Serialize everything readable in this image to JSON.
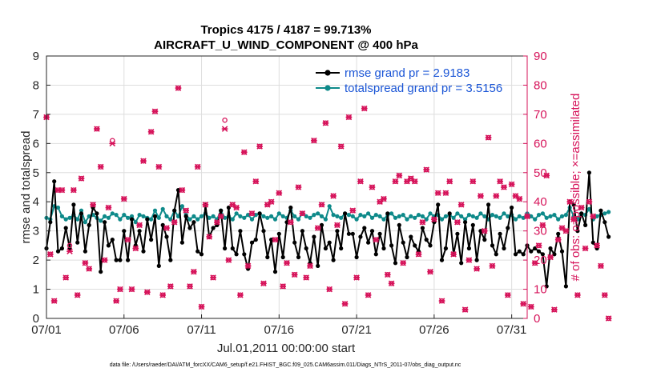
{
  "figure": {
    "title_line1": "Tropics 4175 / 4187 = 99.713%",
    "title_line2": "AIRCRAFT_U_WIND_COMPONENT @ 400 hPa",
    "footer": "data file: /Users/raeder/DAI/ATM_forcXX/CAM6_setup/f.e21.FHIST_BGC.f09_025.CAM6assim.011/Diags_NTrS_2011-07/obs_diag_output.nc"
  },
  "colors": {
    "rmse": "#000000",
    "spread": "#0e8a8a",
    "obs": "#d6135a",
    "legend_text": "#1a55d6"
  },
  "chart_data": {
    "type": "line",
    "xlabel": "Jul.01,2011 00:00:00 start",
    "ylabel": "rmse and totalspread",
    "ylabel_right": "# of obs: o=possible; ×=assimilated",
    "xlim": [
      1,
      32
    ],
    "ylim": [
      0,
      9
    ],
    "ylim_right": [
      0,
      90
    ],
    "x_ticks": [
      1,
      6,
      11,
      16,
      21,
      26,
      31
    ],
    "x_tick_labels": [
      "07/01",
      "07/06",
      "07/11",
      "07/16",
      "07/21",
      "07/26",
      "07/31"
    ],
    "y_ticks": [
      0,
      1,
      2,
      3,
      4,
      5,
      6,
      7,
      8,
      9
    ],
    "y_ticks_right": [
      0,
      10,
      20,
      30,
      40,
      50,
      60,
      70,
      80,
      90
    ],
    "grid": true,
    "legend_position": "top-right",
    "x_start": 1.0,
    "x_step": 0.25,
    "series": [
      {
        "name": "rmse grand pr = 2.9183",
        "axis": "left",
        "values": [
          2.4,
          3.3,
          4.7,
          2.3,
          2.4,
          3.1,
          2.4,
          3.9,
          2.6,
          3.6,
          2.3,
          3.2,
          3.8,
          3.6,
          1.6,
          3.3,
          2.5,
          2.7,
          2.0,
          2.0,
          3.0,
          2.0,
          3.4,
          2.5,
          3.0,
          2.3,
          3.4,
          2.7,
          3.5,
          1.8,
          3.2,
          2.8,
          2.0,
          3.7,
          4.4,
          2.6,
          3.5,
          3.1,
          3.3,
          2.3,
          2.2,
          3.9,
          2.8,
          3.1,
          3.2,
          3.7,
          2.4,
          3.8,
          2.4,
          2.2,
          3.0,
          2.2,
          1.7,
          2.6,
          2.7,
          3.6,
          3.0,
          2.1,
          2.7,
          1.6,
          2.9,
          2.1,
          3.3,
          3.8,
          2.6,
          2.1,
          3.0,
          2.4,
          1.9,
          2.8,
          1.8,
          3.2,
          2.4,
          2.6,
          2.0,
          3.0,
          2.4,
          3.6,
          2.9,
          2.9,
          2.1,
          2.8,
          3.1,
          2.6,
          3.0,
          2.2,
          2.9,
          2.4,
          3.6,
          2.5,
          1.9,
          3.2,
          2.6,
          2.1,
          2.8,
          2.5,
          2.3,
          3.1,
          2.7,
          2.5,
          3.3,
          3.9,
          2.0,
          2.4,
          3.6,
          2.2,
          2.9,
          1.9,
          3.3,
          2.4,
          3.2,
          2.0,
          3.0,
          2.7,
          3.9,
          2.5,
          2.2,
          2.9,
          2.4,
          3.1,
          3.8,
          2.2,
          2.3,
          2.2,
          2.5,
          2.3,
          2.4,
          2.3,
          2.2,
          1.1,
          2.4,
          2.2,
          2.9,
          2.3,
          1.1,
          4.0,
          3.9,
          3.0,
          3.6,
          3.2,
          5.0,
          2.6,
          2.4,
          3.7,
          3.3,
          2.8
        ]
      },
      {
        "name": "totalspread grand pr = 3.5156",
        "axis": "left",
        "values": [
          3.45,
          3.4,
          3.85,
          3.8,
          3.5,
          3.4,
          3.45,
          3.55,
          3.4,
          3.7,
          3.3,
          3.5,
          3.55,
          3.45,
          3.35,
          3.5,
          3.45,
          3.6,
          3.55,
          3.4,
          3.55,
          3.45,
          3.5,
          3.3,
          3.55,
          3.5,
          3.45,
          3.4,
          3.7,
          3.45,
          3.75,
          3.5,
          3.4,
          3.7,
          3.5,
          3.85,
          3.55,
          3.4,
          3.5,
          3.4,
          3.5,
          3.6,
          3.45,
          3.5,
          3.4,
          3.7,
          3.45,
          3.5,
          3.4,
          3.6,
          3.5,
          3.45,
          3.55,
          3.4,
          3.55,
          3.6,
          3.5,
          3.45,
          3.5,
          3.4,
          3.6,
          3.5,
          3.45,
          3.7,
          3.5,
          3.4,
          3.6,
          3.5,
          3.45,
          3.55,
          3.6,
          3.5,
          3.4,
          3.85,
          3.55,
          3.5,
          3.45,
          3.6,
          3.55,
          3.5,
          3.4,
          3.55,
          3.5,
          3.6,
          3.45,
          3.55,
          3.5,
          3.4,
          3.55,
          3.6,
          3.45,
          3.5,
          3.55,
          3.4,
          3.5,
          3.45,
          3.55,
          3.5,
          3.4,
          3.6,
          3.5,
          3.55,
          3.4,
          3.5,
          3.55,
          3.45,
          3.6,
          3.5,
          3.4,
          3.55,
          3.5,
          3.45,
          3.6,
          3.5,
          3.4,
          3.55,
          3.5,
          3.45,
          3.6,
          3.5,
          3.55,
          3.4,
          3.5,
          3.45,
          3.6,
          3.5,
          3.4,
          3.55,
          3.6,
          3.45,
          3.5,
          3.55,
          3.4,
          3.5,
          3.55,
          3.8,
          3.5,
          3.4,
          3.6,
          3.55,
          3.75,
          3.4,
          3.5,
          3.55,
          3.6,
          3.65
        ]
      }
    ],
    "obs_assimilated": {
      "axis": "right",
      "x_start": 1.0,
      "x_step": 0.25,
      "values": [
        69,
        22,
        6,
        44,
        44,
        14,
        23,
        44,
        8,
        48,
        19,
        17,
        39,
        65,
        52,
        20,
        38,
        60,
        6,
        10,
        41,
        27,
        10,
        24,
        32,
        54,
        9,
        64,
        71,
        52,
        8,
        31,
        11,
        33,
        79,
        44,
        37,
        11,
        16,
        52,
        4,
        39,
        28,
        14,
        33,
        35,
        65,
        20,
        39,
        38,
        8,
        57,
        18,
        36,
        47,
        59,
        12,
        39,
        40,
        27,
        43,
        11,
        19,
        33,
        15,
        45,
        36,
        14,
        18,
        61,
        31,
        39,
        67,
        10,
        42,
        32,
        59,
        5,
        69,
        37,
        14,
        47,
        72,
        8,
        45,
        27,
        40,
        41,
        15,
        12,
        47,
        49,
        19,
        47,
        48,
        47,
        22,
        33,
        51,
        16,
        34,
        43,
        6,
        43,
        47,
        22,
        33,
        39,
        3,
        20,
        47,
        17,
        42,
        30,
        62,
        18,
        42,
        47,
        45,
        8,
        46,
        42,
        41,
        5,
        35,
        4,
        19,
        25,
        32,
        49,
        21,
        3,
        27,
        31,
        30,
        40,
        34,
        8,
        38,
        24,
        40,
        35,
        25,
        18,
        8,
        0
      ]
    },
    "obs_possible": {
      "axis": "right",
      "x_start": 1.0,
      "x_step": 0.25,
      "values": [
        69,
        22,
        6,
        44,
        44,
        14,
        25,
        44,
        8,
        48,
        19,
        17,
        39,
        65,
        52,
        20,
        38,
        61,
        6,
        10,
        41,
        27,
        10,
        24,
        32,
        54,
        9,
        64,
        71,
        52,
        8,
        31,
        11,
        33,
        79,
        44,
        37,
        11,
        16,
        52,
        4,
        39,
        28,
        14,
        33,
        35,
        68,
        20,
        39,
        38,
        8,
        57,
        18,
        36,
        47,
        59,
        12,
        39,
        40,
        27,
        43,
        11,
        19,
        33,
        15,
        45,
        36,
        14,
        18,
        61,
        31,
        39,
        67,
        10,
        42,
        32,
        59,
        5,
        69,
        37,
        14,
        47,
        72,
        8,
        45,
        27,
        40,
        41,
        15,
        12,
        47,
        49,
        19,
        47,
        48,
        47,
        22,
        33,
        51,
        16,
        34,
        43,
        6,
        43,
        47,
        22,
        33,
        39,
        3,
        20,
        47,
        17,
        42,
        30,
        62,
        18,
        42,
        47,
        45,
        8,
        46,
        42,
        41,
        5,
        35,
        4,
        19,
        25,
        32,
        49,
        21,
        3,
        27,
        31,
        30,
        40,
        34,
        8,
        38,
        24,
        40,
        35,
        25,
        18,
        8,
        0
      ]
    }
  }
}
